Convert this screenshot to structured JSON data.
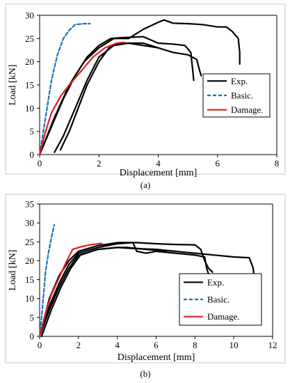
{
  "chart_data": [
    {
      "panel_label": "(a)",
      "type": "line",
      "xlabel": "Displacement [mm]",
      "ylabel": "Load [kN]",
      "xlim": [
        0,
        8
      ],
      "ylim": [
        0,
        30
      ],
      "xticks": [
        0,
        2,
        4,
        6,
        8
      ],
      "yticks": [
        0,
        5,
        10,
        15,
        20,
        25,
        30
      ],
      "legend": {
        "placement": "right",
        "entries": [
          {
            "label": "Exp.",
            "color": "#000000",
            "style": "solid"
          },
          {
            "label": "Basic.",
            "color": "#1f6fbf",
            "style": "dashed"
          },
          {
            "label": "Damage.",
            "color": "#e02020",
            "style": "solid"
          }
        ]
      },
      "series": [
        {
          "group": "Exp.",
          "color": "#000000",
          "style": "solid",
          "points": [
            [
              0,
              0
            ],
            [
              0.5,
              8
            ],
            [
              1,
              15
            ],
            [
              1.5,
              20
            ],
            [
              2,
              23
            ],
            [
              2.5,
              25
            ],
            [
              3,
              25
            ],
            [
              3.5,
              27
            ],
            [
              4,
              28.5
            ],
            [
              4.2,
              29
            ],
            [
              4.5,
              28.3
            ],
            [
              5,
              28.2
            ],
            [
              5.5,
              28
            ],
            [
              6,
              27.5
            ],
            [
              6.3,
              27.5
            ],
            [
              6.5,
              26.5
            ],
            [
              6.7,
              25
            ],
            [
              6.75,
              22
            ],
            [
              6.75,
              19.5
            ]
          ]
        },
        {
          "group": "Exp.",
          "color": "#000000",
          "style": "solid",
          "points": [
            [
              0,
              0
            ],
            [
              0.4,
              6
            ],
            [
              0.8,
              12
            ],
            [
              1.2,
              17
            ],
            [
              1.6,
              21
            ],
            [
              2,
              23.5
            ],
            [
              2.4,
              25
            ],
            [
              2.8,
              25.2
            ],
            [
              3.2,
              25.3
            ],
            [
              3.5,
              25.4
            ],
            [
              4,
              24
            ],
            [
              4.5,
              23.8
            ],
            [
              4.9,
              23.5
            ],
            [
              5.1,
              22
            ],
            [
              5.15,
              19
            ],
            [
              5.2,
              16
            ]
          ]
        },
        {
          "group": "Exp.",
          "color": "#000000",
          "style": "solid",
          "points": [
            [
              0.7,
              1
            ],
            [
              1,
              5
            ],
            [
              1.3,
              10
            ],
            [
              1.6,
              15
            ],
            [
              2,
              20
            ],
            [
              2.4,
              23.5
            ],
            [
              2.8,
              24
            ],
            [
              3.5,
              24
            ],
            [
              4,
              23
            ],
            [
              4.5,
              22
            ],
            [
              5,
              21.5
            ],
            [
              5.3,
              20.5
            ],
            [
              5.4,
              18
            ],
            [
              5.45,
              17
            ]
          ]
        },
        {
          "group": "Exp.",
          "color": "#000000",
          "style": "solid",
          "points": [
            [
              0.5,
              0.5
            ],
            [
              0.8,
              4
            ],
            [
              1.2,
              10
            ],
            [
              1.6,
              16
            ],
            [
              2,
              21
            ],
            [
              2.5,
              23.5
            ],
            [
              3,
              24
            ],
            [
              3.5,
              23.5
            ],
            [
              4,
              23
            ]
          ]
        },
        {
          "group": "Basic.",
          "color": "#1f6fbf",
          "style": "dashed",
          "points": [
            [
              0,
              0
            ],
            [
              0.2,
              8
            ],
            [
              0.4,
              16
            ],
            [
              0.6,
              21.5
            ],
            [
              0.8,
              25
            ],
            [
              1,
              26.8
            ],
            [
              1.2,
              28
            ],
            [
              1.5,
              28.2
            ],
            [
              1.7,
              28.2
            ]
          ]
        },
        {
          "group": "Damage.",
          "color": "#e02020",
          "style": "solid",
          "points": [
            [
              0,
              0
            ],
            [
              0.2,
              5
            ],
            [
              0.4,
              9
            ],
            [
              0.7,
              12.5
            ],
            [
              1,
              15
            ],
            [
              1.4,
              18
            ],
            [
              1.8,
              21
            ],
            [
              2.2,
              23
            ],
            [
              2.6,
              24
            ],
            [
              2.85,
              24.2
            ]
          ]
        }
      ]
    },
    {
      "panel_label": "(b)",
      "type": "line",
      "xlabel": "Displacement [mm]",
      "ylabel": "Load [kN]",
      "xlim": [
        0,
        12
      ],
      "ylim": [
        0,
        35
      ],
      "xticks": [
        0,
        2,
        4,
        6,
        8,
        10,
        12
      ],
      "yticks": [
        0,
        5,
        10,
        15,
        20,
        25,
        30,
        35
      ],
      "legend": {
        "placement": "bottom-right",
        "entries": [
          {
            "label": "Exp.",
            "color": "#000000",
            "style": "solid"
          },
          {
            "label": "Basic.",
            "color": "#1f6fbf",
            "style": "dashed"
          },
          {
            "label": "Damage.",
            "color": "#e02020",
            "style": "solid"
          }
        ]
      },
      "series": [
        {
          "group": "Exp.",
          "color": "#000000",
          "style": "solid",
          "points": [
            [
              0,
              0
            ],
            [
              0.5,
              10
            ],
            [
              1,
              16
            ],
            [
              1.5,
              20
            ],
            [
              2,
              22.5
            ],
            [
              3,
              24
            ],
            [
              4,
              24.8
            ],
            [
              5,
              24.8
            ],
            [
              6,
              24.5
            ],
            [
              7,
              24.3
            ],
            [
              8,
              24.2
            ],
            [
              8.3,
              23
            ],
            [
              8.5,
              20
            ],
            [
              8.7,
              18
            ],
            [
              8.9,
              17
            ]
          ]
        },
        {
          "group": "Exp.",
          "color": "#000000",
          "style": "solid",
          "points": [
            [
              0,
              0
            ],
            [
              0.5,
              8
            ],
            [
              1,
              14
            ],
            [
              1.5,
              19
            ],
            [
              2,
              22
            ],
            [
              3,
              23.5
            ],
            [
              4,
              24.5
            ],
            [
              4.8,
              24.8
            ],
            [
              5,
              22.5
            ],
            [
              5.5,
              22
            ],
            [
              6,
              22.5
            ],
            [
              7,
              22
            ],
            [
              8,
              21.5
            ],
            [
              8.5,
              21
            ],
            [
              8.6,
              18
            ],
            [
              8.7,
              16.5
            ]
          ]
        },
        {
          "group": "Exp.",
          "color": "#000000",
          "style": "solid",
          "points": [
            [
              0,
              0
            ],
            [
              0.5,
              7
            ],
            [
              1,
              13
            ],
            [
              1.5,
              18
            ],
            [
              2,
              21.5
            ],
            [
              3,
              23
            ],
            [
              4,
              23.5
            ],
            [
              5,
              23.2
            ],
            [
              6,
              23
            ],
            [
              7,
              22.5
            ],
            [
              8,
              22
            ],
            [
              9,
              21.5
            ],
            [
              10,
              21
            ],
            [
              10.8,
              20.8
            ],
            [
              11,
              18
            ],
            [
              11.05,
              15.5
            ]
          ]
        },
        {
          "group": "Exp.",
          "color": "#000000",
          "style": "solid",
          "points": [
            [
              0.1,
              0
            ],
            [
              0.6,
              7
            ],
            [
              1.1,
              13
            ],
            [
              1.6,
              18
            ],
            [
              2.1,
              21.5
            ],
            [
              3,
              23
            ],
            [
              4,
              23.5
            ],
            [
              4.5,
              23.5
            ],
            [
              5.5,
              23
            ],
            [
              6.5,
              22.5
            ]
          ]
        },
        {
          "group": "Basic.",
          "color": "#1f6fbf",
          "style": "dashed",
          "points": [
            [
              0,
              0
            ],
            [
              0.1,
              5
            ],
            [
              0.2,
              11
            ],
            [
              0.3,
              17
            ],
            [
              0.45,
              22
            ],
            [
              0.6,
              26
            ],
            [
              0.75,
              29.5
            ]
          ]
        },
        {
          "group": "Damage.",
          "color": "#e02020",
          "style": "solid",
          "points": [
            [
              0,
              0
            ],
            [
              0.3,
              6
            ],
            [
              0.6,
              11
            ],
            [
              1,
              15.5
            ],
            [
              1.4,
              20
            ],
            [
              1.7,
              23
            ],
            [
              2.2,
              23.8
            ],
            [
              2.7,
              24.3
            ],
            [
              3.2,
              24.6
            ]
          ]
        }
      ]
    }
  ]
}
